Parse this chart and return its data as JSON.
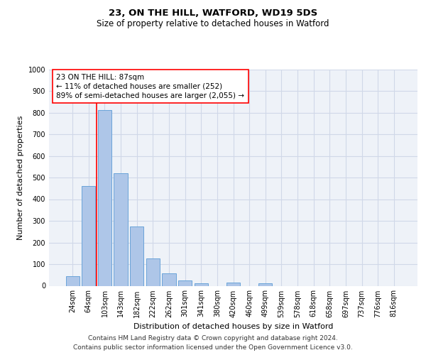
{
  "title_line1": "23, ON THE HILL, WATFORD, WD19 5DS",
  "title_line2": "Size of property relative to detached houses in Watford",
  "xlabel": "Distribution of detached houses by size in Watford",
  "ylabel": "Number of detached properties",
  "footer_line1": "Contains HM Land Registry data © Crown copyright and database right 2024.",
  "footer_line2": "Contains public sector information licensed under the Open Government Licence v3.0.",
  "categories": [
    "24sqm",
    "64sqm",
    "103sqm",
    "143sqm",
    "182sqm",
    "222sqm",
    "262sqm",
    "301sqm",
    "341sqm",
    "380sqm",
    "420sqm",
    "460sqm",
    "499sqm",
    "539sqm",
    "578sqm",
    "618sqm",
    "658sqm",
    "697sqm",
    "737sqm",
    "776sqm",
    "816sqm"
  ],
  "values": [
    45,
    460,
    810,
    520,
    275,
    125,
    58,
    25,
    12,
    0,
    14,
    0,
    10,
    0,
    0,
    0,
    0,
    0,
    0,
    0,
    0
  ],
  "bar_color": "#aec6e8",
  "bar_edge_color": "#5b9bd5",
  "grid_color": "#d0d8e8",
  "background_color": "#eef2f8",
  "annotation_line1": "23 ON THE HILL: 87sqm",
  "annotation_line2": "← 11% of detached houses are smaller (252)",
  "annotation_line3": "89% of semi-detached houses are larger (2,055) →",
  "redline_x": 1.5,
  "ylim": [
    0,
    1000
  ],
  "yticks": [
    0,
    100,
    200,
    300,
    400,
    500,
    600,
    700,
    800,
    900,
    1000
  ],
  "title1_fontsize": 9.5,
  "title2_fontsize": 8.5,
  "xlabel_fontsize": 8,
  "ylabel_fontsize": 8,
  "tick_fontsize": 7,
  "annotation_fontsize": 7.5,
  "footer_fontsize": 6.5
}
